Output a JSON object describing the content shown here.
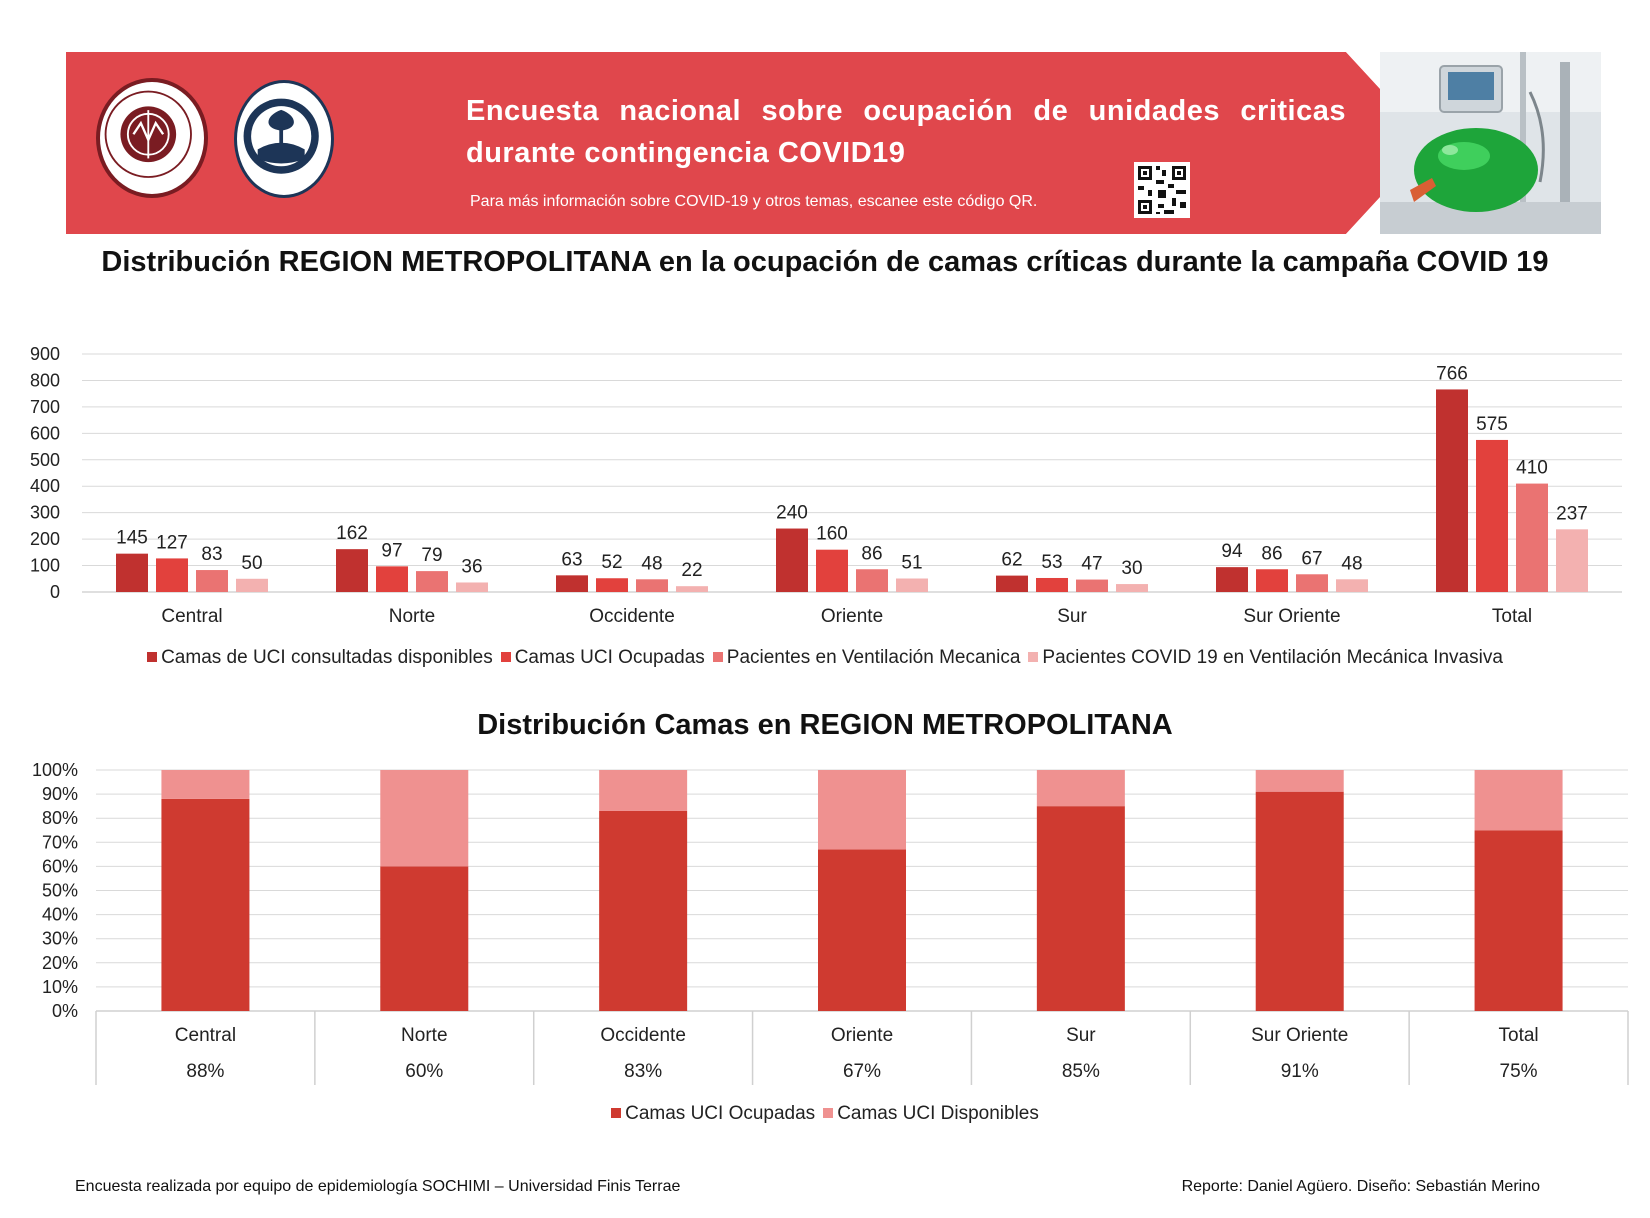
{
  "banner": {
    "title": "Encuesta nacional sobre ocupación de unidades criticas durante contingencia COVID19",
    "subtitle": "Para más información sobre COVID-19 y otros temas, escanee este código QR.",
    "logos": [
      "sochimi-logo",
      "finis-terrae-logo"
    ],
    "colors": {
      "banner_red": "#e0474c"
    }
  },
  "chart1": {
    "title": "Distribución REGION METROPOLITANA en la ocupación de camas críticas durante la campaña COVID 19",
    "chart_data": {
      "type": "bar",
      "categories": [
        "Central",
        "Norte",
        "Occidente",
        "Oriente",
        "Sur",
        "Sur Oriente",
        "Total"
      ],
      "ylim": [
        0,
        900
      ],
      "yticks": [
        "0",
        "100",
        "200",
        "300",
        "400",
        "500",
        "600",
        "700",
        "800",
        "900"
      ],
      "grid": true,
      "legend_position": "bottom",
      "series": [
        {
          "name": "Camas de UCI consultadas disponibles",
          "color": "#c0312f",
          "values": [
            145,
            162,
            63,
            240,
            62,
            94,
            766
          ]
        },
        {
          "name": "Camas UCI Ocupadas",
          "color": "#e2413d",
          "values": [
            127,
            97,
            52,
            160,
            53,
            86,
            575
          ]
        },
        {
          "name": "Pacientes en Ventilación Mecanica",
          "color": "#ea7372",
          "values": [
            83,
            79,
            48,
            86,
            47,
            67,
            410
          ]
        },
        {
          "name": "Pacientes COVID 19 en Ventilación Mecánica Invasiva",
          "color": "#f3b1b0",
          "values": [
            50,
            36,
            22,
            51,
            30,
            48,
            237
          ]
        }
      ]
    }
  },
  "chart2": {
    "title": "Distribución Camas en REGION METROPOLITANA",
    "chart_data": {
      "type": "bar",
      "stacked": true,
      "percent": true,
      "categories": [
        "Central",
        "Norte",
        "Occidente",
        "Oriente",
        "Sur",
        "Sur Oriente",
        "Total"
      ],
      "ylim": [
        0,
        100
      ],
      "yticks": [
        "0%",
        "10%",
        "20%",
        "30%",
        "40%",
        "50%",
        "60%",
        "70%",
        "80%",
        "90%",
        "100%"
      ],
      "grid": true,
      "legend_position": "bottom",
      "series": [
        {
          "name": "Camas UCI Ocupadas",
          "color": "#cf3a30",
          "values": [
            88,
            60,
            83,
            67,
            85,
            91,
            75
          ]
        },
        {
          "name": "Camas UCI Disponibles",
          "color": "#ef9190",
          "values": [
            12,
            40,
            17,
            33,
            15,
            9,
            25
          ]
        }
      ],
      "table_row": [
        "88%",
        "60%",
        "83%",
        "67%",
        "85%",
        "91%",
        "75%"
      ]
    }
  },
  "footer": {
    "left": "Encuesta realizada por equipo de epidemiología SOCHIMI – Universidad Finis Terrae",
    "right": "Reporte: Daniel Agüero. Diseño: Sebastián Merino"
  }
}
